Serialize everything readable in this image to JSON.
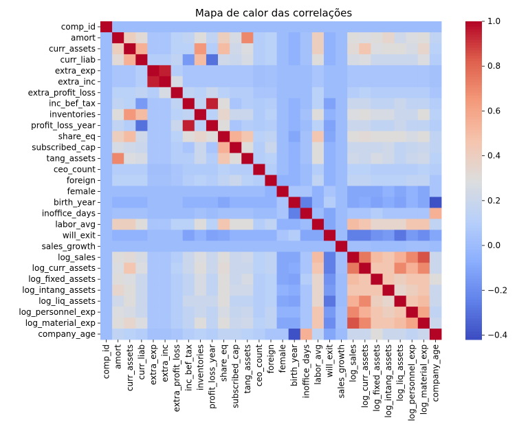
{
  "chart_data": {
    "type": "heatmap",
    "title": "Mapa de calor das correlações",
    "labels": [
      "comp_id",
      "amort",
      "curr_assets",
      "curr_liab",
      "extra_exp",
      "extra_inc",
      "extra_profit_loss",
      "inc_bef_tax",
      "inventories",
      "profit_loss_year",
      "share_eq",
      "subscribed_cap",
      "tang_assets",
      "ceo_count",
      "foreign",
      "female",
      "birth_year",
      "inoffice_days",
      "labor_avg",
      "will_exit",
      "sales_growth",
      "log_sales",
      "log_curr_assets",
      "log_fixed_assets",
      "log_intang_assets",
      "log_liq_assets",
      "log_personnel_exp",
      "log_material_exp",
      "company_age"
    ],
    "colorbar": {
      "vmin": -0.42,
      "vmax": 1.0,
      "ticks": [
        1.0,
        0.8,
        0.6,
        0.4,
        0.2,
        0.0,
        -0.2,
        -0.4
      ],
      "tick_labels": [
        "1.0",
        "0.8",
        "0.6",
        "0.4",
        "0.2",
        "0.0",
        "−0.2",
        "−0.4"
      ],
      "colormap": "coolwarm"
    },
    "values": [
      [
        1.0,
        0.0,
        0.0,
        0.0,
        0.0,
        0.0,
        0.0,
        0.0,
        0.0,
        0.0,
        0.0,
        0.0,
        0.0,
        0.0,
        0.0,
        0.0,
        0.0,
        0.0,
        0.0,
        0.0,
        0.0,
        0.0,
        0.0,
        0.0,
        0.0,
        0.0,
        0.0,
        0.0,
        0.0
      ],
      [
        0.0,
        1.0,
        0.4,
        0.32,
        0.05,
        0.05,
        0.12,
        0.15,
        0.3,
        0.15,
        0.4,
        0.25,
        0.7,
        0.1,
        0.12,
        0.0,
        -0.05,
        0.03,
        0.4,
        -0.05,
        0.0,
        0.3,
        0.28,
        0.3,
        0.35,
        0.22,
        0.28,
        0.3,
        0.15
      ],
      [
        0.0,
        0.4,
        1.0,
        0.55,
        0.05,
        0.05,
        0.12,
        0.12,
        0.65,
        0.1,
        0.5,
        0.22,
        0.28,
        0.1,
        0.12,
        0.0,
        -0.05,
        0.03,
        0.4,
        -0.05,
        0.0,
        0.32,
        0.45,
        0.28,
        0.3,
        0.3,
        0.25,
        0.35,
        0.12
      ],
      [
        0.0,
        0.32,
        0.55,
        1.0,
        0.1,
        0.1,
        0.15,
        -0.15,
        0.5,
        -0.3,
        0.22,
        0.2,
        0.25,
        0.1,
        0.12,
        0.0,
        -0.05,
        0.03,
        0.3,
        -0.05,
        0.0,
        0.25,
        0.28,
        0.2,
        0.2,
        0.2,
        0.2,
        0.28,
        0.1
      ],
      [
        0.0,
        0.05,
        0.05,
        0.1,
        1.0,
        0.95,
        0.1,
        0.05,
        0.05,
        0.05,
        0.05,
        0.05,
        0.05,
        0.02,
        0.03,
        0.0,
        0.0,
        0.0,
        0.05,
        0.0,
        0.0,
        0.05,
        0.05,
        0.05,
        0.05,
        0.05,
        0.05,
        0.05,
        0.03
      ],
      [
        0.0,
        0.05,
        0.05,
        0.1,
        0.95,
        1.0,
        0.25,
        0.05,
        0.05,
        0.05,
        0.05,
        0.05,
        0.05,
        0.02,
        0.03,
        0.0,
        0.0,
        0.0,
        0.05,
        0.0,
        0.0,
        0.05,
        0.05,
        0.05,
        0.05,
        0.05,
        0.05,
        0.05,
        0.03
      ],
      [
        0.0,
        0.12,
        0.12,
        0.15,
        0.1,
        0.25,
        1.0,
        0.15,
        0.12,
        0.2,
        0.12,
        0.1,
        0.1,
        0.05,
        0.05,
        0.0,
        0.0,
        0.0,
        0.12,
        0.0,
        0.0,
        0.1,
        0.12,
        0.1,
        0.1,
        0.1,
        0.1,
        0.1,
        0.05
      ],
      [
        0.0,
        0.15,
        0.12,
        -0.15,
        0.05,
        0.05,
        0.15,
        1.0,
        0.15,
        0.95,
        0.3,
        0.05,
        0.1,
        0.08,
        0.1,
        0.0,
        -0.05,
        0.0,
        0.12,
        -0.12,
        0.0,
        0.2,
        0.2,
        0.15,
        0.15,
        0.2,
        0.15,
        0.15,
        0.1
      ],
      [
        0.0,
        0.3,
        0.65,
        0.5,
        0.05,
        0.05,
        0.12,
        0.15,
        1.0,
        0.12,
        0.35,
        0.2,
        0.2,
        0.08,
        0.12,
        0.0,
        -0.05,
        0.03,
        0.3,
        -0.05,
        0.0,
        0.28,
        0.3,
        0.25,
        0.25,
        0.2,
        0.2,
        0.3,
        0.12
      ],
      [
        0.0,
        0.15,
        0.1,
        -0.3,
        0.05,
        0.05,
        0.2,
        0.95,
        0.12,
        1.0,
        0.3,
        0.05,
        0.1,
        0.08,
        0.1,
        0.0,
        -0.05,
        0.0,
        0.12,
        -0.12,
        0.0,
        0.2,
        0.2,
        0.15,
        0.15,
        0.2,
        0.15,
        0.15,
        0.1
      ],
      [
        0.0,
        0.4,
        0.5,
        0.22,
        0.05,
        0.05,
        0.12,
        0.3,
        0.35,
        0.3,
        1.0,
        0.55,
        0.45,
        0.12,
        0.15,
        0.0,
        -0.1,
        0.03,
        0.45,
        -0.1,
        0.0,
        0.3,
        0.32,
        0.3,
        0.3,
        0.3,
        0.25,
        0.3,
        0.15
      ],
      [
        0.0,
        0.25,
        0.22,
        0.2,
        0.05,
        0.05,
        0.1,
        0.05,
        0.2,
        0.05,
        0.55,
        1.0,
        0.3,
        0.1,
        0.2,
        0.0,
        -0.05,
        0.03,
        0.3,
        -0.05,
        0.0,
        0.2,
        0.2,
        0.2,
        0.22,
        0.15,
        0.18,
        0.2,
        0.15
      ],
      [
        0.0,
        0.7,
        0.28,
        0.25,
        0.05,
        0.05,
        0.1,
        0.1,
        0.2,
        0.1,
        0.45,
        0.3,
        1.0,
        0.1,
        0.12,
        0.0,
        -0.05,
        0.03,
        0.3,
        -0.05,
        0.0,
        0.22,
        0.2,
        0.25,
        0.22,
        0.15,
        0.2,
        0.22,
        0.12
      ],
      [
        0.0,
        0.1,
        0.1,
        0.1,
        0.02,
        0.02,
        0.05,
        0.08,
        0.08,
        0.08,
        0.12,
        0.1,
        0.1,
        1.0,
        0.1,
        0.0,
        -0.05,
        0.0,
        0.1,
        -0.05,
        0.0,
        0.12,
        0.12,
        0.1,
        0.1,
        0.1,
        0.1,
        0.12,
        0.1
      ],
      [
        0.0,
        0.12,
        0.12,
        0.12,
        0.03,
        0.03,
        0.05,
        0.1,
        0.12,
        0.1,
        0.15,
        0.2,
        0.12,
        0.1,
        1.0,
        -0.05,
        -0.05,
        0.0,
        0.15,
        -0.05,
        0.0,
        0.15,
        0.15,
        0.12,
        0.12,
        0.12,
        0.15,
        0.15,
        0.05
      ],
      [
        0.0,
        0.0,
        0.0,
        0.0,
        0.0,
        0.0,
        0.0,
        0.0,
        0.0,
        0.0,
        0.0,
        0.0,
        0.0,
        0.0,
        -0.05,
        1.0,
        0.05,
        0.05,
        -0.05,
        0.05,
        0.0,
        -0.1,
        -0.1,
        -0.1,
        -0.05,
        -0.1,
        -0.05,
        -0.1,
        0.05
      ],
      [
        0.0,
        -0.05,
        -0.05,
        -0.05,
        0.0,
        0.0,
        0.0,
        -0.05,
        -0.05,
        -0.05,
        -0.1,
        -0.05,
        -0.05,
        -0.05,
        -0.05,
        0.05,
        1.0,
        -0.25,
        -0.05,
        0.1,
        0.0,
        -0.1,
        -0.08,
        -0.12,
        -0.08,
        -0.12,
        -0.05,
        -0.1,
        -0.4
      ],
      [
        0.0,
        0.03,
        0.03,
        0.03,
        0.0,
        0.0,
        0.0,
        0.0,
        0.03,
        0.0,
        0.03,
        0.03,
        0.03,
        0.0,
        0.0,
        0.05,
        -0.25,
        1.0,
        0.0,
        -0.1,
        0.0,
        0.05,
        0.05,
        0.1,
        0.05,
        0.05,
        0.05,
        0.05,
        0.55
      ],
      [
        0.0,
        0.4,
        0.4,
        0.3,
        0.05,
        0.05,
        0.12,
        0.12,
        0.3,
        0.12,
        0.45,
        0.3,
        0.3,
        0.1,
        0.15,
        -0.05,
        -0.05,
        0.0,
        1.0,
        -0.1,
        0.0,
        0.5,
        0.45,
        0.35,
        0.35,
        0.35,
        0.45,
        0.45,
        0.15
      ],
      [
        0.0,
        -0.05,
        -0.05,
        -0.05,
        0.0,
        0.0,
        0.0,
        -0.12,
        -0.05,
        -0.12,
        -0.1,
        -0.05,
        -0.05,
        -0.05,
        -0.05,
        0.05,
        0.1,
        -0.1,
        -0.1,
        1.0,
        0.0,
        -0.25,
        -0.25,
        -0.18,
        -0.15,
        -0.28,
        -0.15,
        -0.2,
        -0.1
      ],
      [
        0.0,
        0.0,
        0.0,
        0.0,
        0.0,
        0.0,
        0.0,
        0.0,
        0.0,
        0.0,
        0.0,
        0.0,
        0.0,
        0.0,
        0.0,
        0.0,
        0.0,
        0.0,
        0.0,
        0.0,
        1.0,
        0.02,
        0.02,
        0.0,
        0.0,
        0.0,
        0.02,
        0.02,
        0.0
      ],
      [
        0.0,
        0.3,
        0.32,
        0.25,
        0.05,
        0.05,
        0.1,
        0.2,
        0.28,
        0.2,
        0.3,
        0.2,
        0.22,
        0.12,
        0.15,
        -0.1,
        -0.1,
        0.05,
        0.5,
        -0.25,
        0.02,
        1.0,
        0.75,
        0.5,
        0.45,
        0.55,
        0.7,
        0.85,
        0.2
      ],
      [
        0.0,
        0.28,
        0.45,
        0.28,
        0.05,
        0.05,
        0.12,
        0.2,
        0.3,
        0.2,
        0.32,
        0.2,
        0.2,
        0.12,
        0.15,
        -0.1,
        -0.08,
        0.05,
        0.45,
        -0.25,
        0.02,
        0.75,
        1.0,
        0.45,
        0.45,
        0.7,
        0.55,
        0.7,
        0.2
      ],
      [
        0.0,
        0.3,
        0.28,
        0.2,
        0.05,
        0.05,
        0.1,
        0.15,
        0.25,
        0.15,
        0.3,
        0.2,
        0.25,
        0.1,
        0.12,
        -0.1,
        -0.12,
        0.1,
        0.35,
        -0.18,
        0.0,
        0.5,
        0.45,
        1.0,
        0.45,
        0.4,
        0.45,
        0.45,
        0.3
      ],
      [
        0.0,
        0.35,
        0.3,
        0.2,
        0.05,
        0.05,
        0.1,
        0.15,
        0.25,
        0.15,
        0.3,
        0.22,
        0.22,
        0.1,
        0.12,
        -0.05,
        -0.08,
        0.05,
        0.35,
        -0.15,
        0.0,
        0.45,
        0.45,
        0.45,
        1.0,
        0.35,
        0.4,
        0.45,
        0.2
      ],
      [
        0.0,
        0.22,
        0.3,
        0.2,
        0.05,
        0.05,
        0.1,
        0.2,
        0.2,
        0.2,
        0.3,
        0.15,
        0.15,
        0.1,
        0.12,
        -0.1,
        -0.12,
        0.05,
        0.35,
        -0.28,
        0.0,
        0.55,
        0.7,
        0.4,
        0.35,
        1.0,
        0.45,
        0.5,
        0.2
      ],
      [
        0.0,
        0.28,
        0.25,
        0.2,
        0.05,
        0.05,
        0.1,
        0.15,
        0.2,
        0.15,
        0.25,
        0.18,
        0.2,
        0.1,
        0.15,
        -0.05,
        -0.05,
        0.05,
        0.45,
        -0.15,
        0.02,
        0.7,
        0.55,
        0.45,
        0.4,
        0.45,
        1.0,
        0.6,
        0.15
      ],
      [
        0.0,
        0.3,
        0.35,
        0.28,
        0.05,
        0.05,
        0.1,
        0.15,
        0.3,
        0.15,
        0.3,
        0.2,
        0.22,
        0.12,
        0.15,
        -0.1,
        -0.1,
        0.05,
        0.45,
        -0.2,
        0.02,
        0.85,
        0.7,
        0.45,
        0.45,
        0.5,
        0.6,
        1.0,
        0.2
      ],
      [
        0.0,
        0.15,
        0.12,
        0.1,
        0.03,
        0.03,
        0.05,
        0.1,
        0.12,
        0.1,
        0.15,
        0.15,
        0.12,
        0.1,
        0.05,
        0.05,
        -0.4,
        0.55,
        0.15,
        -0.1,
        0.0,
        0.2,
        0.2,
        0.3,
        0.2,
        0.2,
        0.15,
        0.2,
        1.0
      ]
    ]
  }
}
